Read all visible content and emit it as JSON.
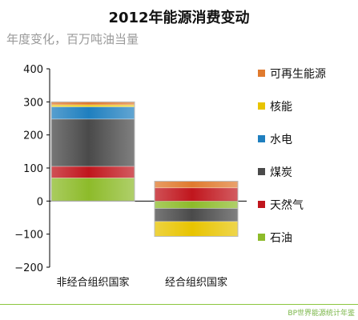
{
  "chart_data": {
    "type": "bar",
    "stacked": true,
    "title": "2012年能源消费变动",
    "subtitle": "年度变化，百万吨油当量",
    "categories": [
      "非经合组织国家",
      "经合组织国家"
    ],
    "series": [
      {
        "name": "石油",
        "color": "#8dbb2a",
        "values": [
          70,
          -22
        ]
      },
      {
        "name": "天然气",
        "color": "#c0161d",
        "values": [
          35,
          40
        ]
      },
      {
        "name": "煤炭",
        "color": "#4a4a4a",
        "values": [
          143,
          -40
        ]
      },
      {
        "name": "水电",
        "color": "#1f7fbf",
        "values": [
          37,
          0
        ]
      },
      {
        "name": "核能",
        "color": "#e8c400",
        "values": [
          6,
          -45
        ]
      },
      {
        "name": "可再生能源",
        "color": "#e07a2e",
        "values": [
          9,
          20
        ]
      }
    ],
    "ylim": [
      -200,
      400
    ],
    "yticks": [
      "400",
      "300",
      "200",
      "100",
      "0",
      "-100",
      "-200"
    ],
    "legend_position": "right",
    "grid": false
  },
  "source": "BP世界能源统计年鉴"
}
